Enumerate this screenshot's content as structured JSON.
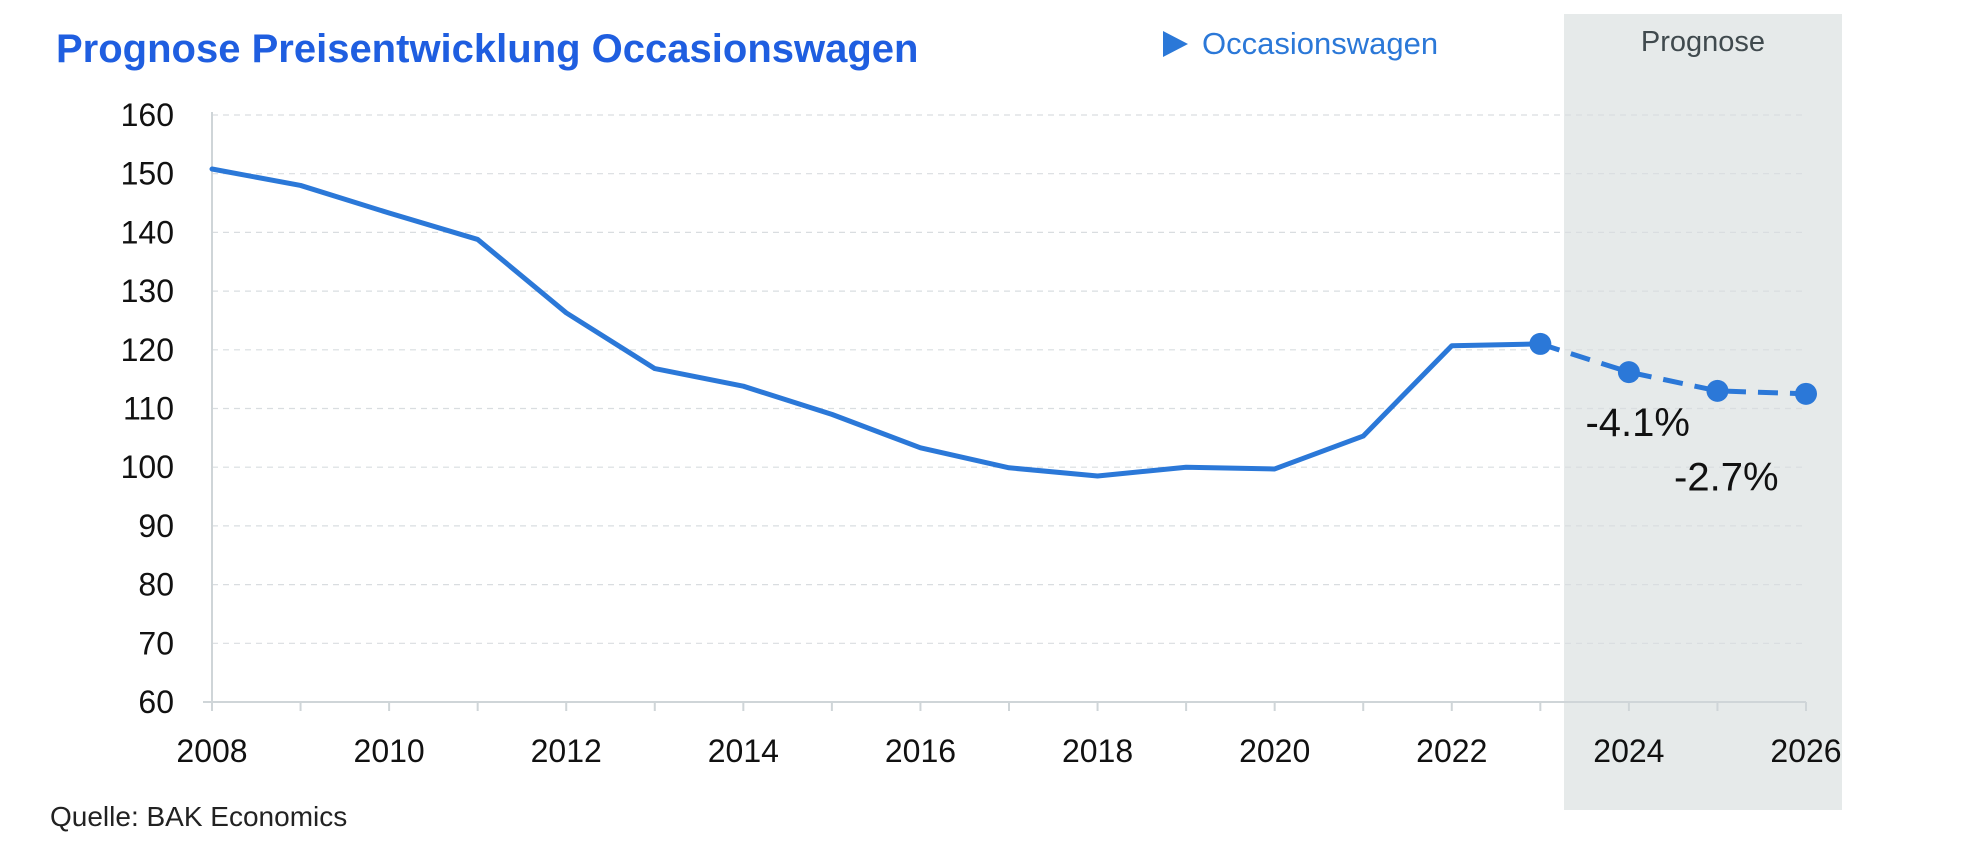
{
  "chart_data": {
    "type": "line",
    "title": "Prognose Preisentwicklung Occasionswagen",
    "legend": {
      "label": "Occasionswagen",
      "placement": "top"
    },
    "source": "Quelle: BAK Economics",
    "forecast_band_label": "Prognose",
    "xlabel": "",
    "ylabel": "",
    "xlim": [
      2008,
      2026
    ],
    "ylim": [
      60,
      160
    ],
    "y_ticks": [
      60,
      70,
      80,
      90,
      100,
      110,
      120,
      130,
      140,
      150,
      160
    ],
    "x_tick_labels": [
      "2008",
      "2010",
      "2012",
      "2014",
      "2016",
      "2018",
      "2020",
      "2022",
      "2024",
      "2026"
    ],
    "x_tick_values": [
      2008,
      2010,
      2012,
      2014,
      2016,
      2018,
      2020,
      2022,
      2024,
      2026
    ],
    "grid": "horizontal dashed",
    "forecast_start": 2023.4,
    "series": [
      {
        "name": "Occasionswagen",
        "color": "#2b78d8",
        "historical": {
          "x": [
            2008,
            2009,
            2010,
            2011,
            2012,
            2013,
            2014,
            2015,
            2016,
            2017,
            2018,
            2019,
            2020,
            2021,
            2022,
            2023
          ],
          "y": [
            150.8,
            148.0,
            143.3,
            138.8,
            126.3,
            116.8,
            113.8,
            109.0,
            103.3,
            99.9,
            98.5,
            100.0,
            99.7,
            105.3,
            120.7,
            121.0
          ]
        },
        "forecast": {
          "x": [
            2023,
            2024,
            2025,
            2026
          ],
          "y": [
            121.0,
            116.2,
            113.0,
            112.5
          ]
        }
      }
    ],
    "annotations": [
      {
        "text": "-4.1%",
        "x": 2024.1,
        "y": 105.3
      },
      {
        "text": "-2.7%",
        "x": 2025.1,
        "y": 96.0
      }
    ]
  }
}
